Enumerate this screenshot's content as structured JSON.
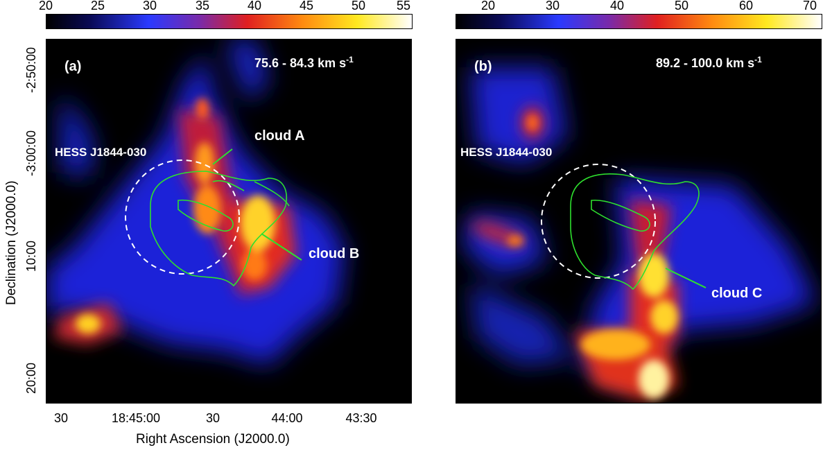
{
  "colorbar_a": {
    "ticks": [
      "20",
      "25",
      "30",
      "35",
      "40",
      "45",
      "50",
      "55"
    ]
  },
  "colorbar_b": {
    "ticks": [
      "20",
      "30",
      "40",
      "50",
      "60",
      "70"
    ]
  },
  "panel_a": {
    "label": "(a)",
    "velocity": "75.6 - 84.3 km s",
    "velocity_sup": "-1",
    "source": "HESS J1844-030",
    "cloud_a": "cloud A",
    "cloud_b": "cloud B"
  },
  "panel_b": {
    "label": "(b)",
    "velocity": "89.2 - 100.0 km s",
    "velocity_sup": "-1",
    "source": "HESS J1844-030",
    "cloud_c": "cloud C"
  },
  "axes": {
    "ylabel": "Declination (J2000.0)",
    "xlabel": "Right Ascension (J2000.0)",
    "dec_ticks": [
      "-2:50:00",
      "-3:00:00",
      "10:00",
      "20:00"
    ],
    "ra_ticks": [
      "30",
      "18:45:00",
      "30",
      "44:00",
      "43:30"
    ]
  },
  "colors": {
    "contour": "#2ee02e",
    "circle": "#ffffff",
    "annotation": "#ffffff"
  }
}
